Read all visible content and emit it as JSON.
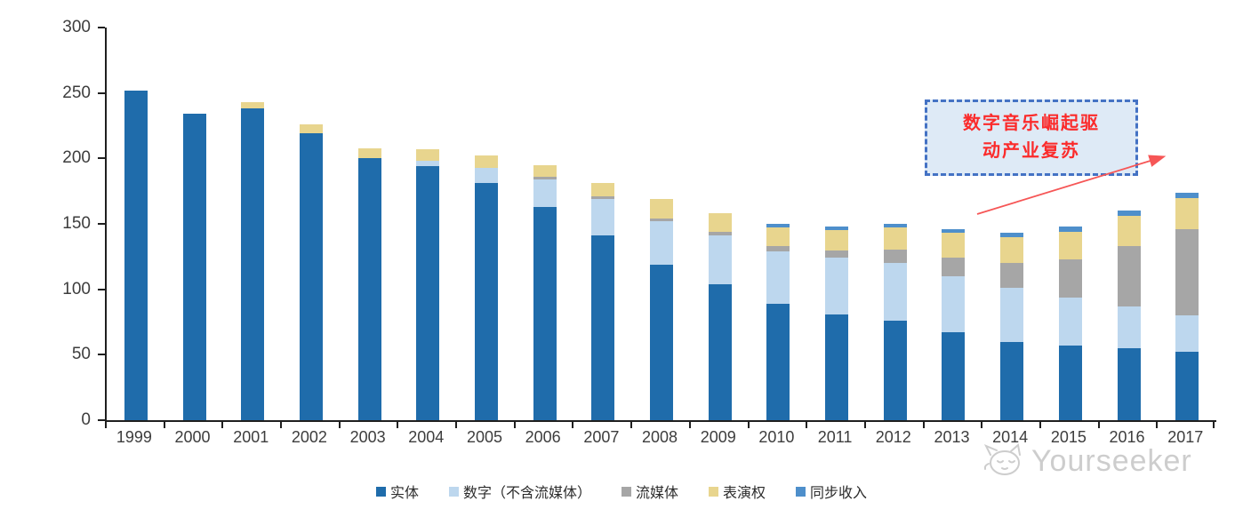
{
  "chart_data": {
    "type": "bar",
    "stacked": true,
    "categories": [
      "1999",
      "2000",
      "2001",
      "2002",
      "2003",
      "2004",
      "2005",
      "2006",
      "2007",
      "2008",
      "2009",
      "2010",
      "2011",
      "2012",
      "2013",
      "2014",
      "2015",
      "2016",
      "2017"
    ],
    "series": [
      {
        "name": "实体",
        "color": "#1f6cab",
        "values": [
          252,
          234,
          238,
          219,
          200,
          194,
          181,
          163,
          141,
          119,
          104,
          89,
          81,
          76,
          67,
          60,
          57,
          55,
          52
        ]
      },
      {
        "name": "数字（不含流媒体）",
        "color": "#bdd7ee",
        "values": [
          0,
          0,
          0,
          0,
          0,
          4,
          12,
          21,
          28,
          33,
          37,
          40,
          43,
          44,
          43,
          41,
          37,
          32,
          28
        ]
      },
      {
        "name": "流媒体",
        "color": "#a6a6a6",
        "values": [
          0,
          0,
          0,
          0,
          0,
          0,
          0,
          2,
          2,
          2,
          3,
          4,
          6,
          10,
          14,
          19,
          29,
          46,
          66
        ]
      },
      {
        "name": "表演权",
        "color": "#e8d58e",
        "values": [
          0,
          0,
          5,
          7,
          8,
          9,
          9,
          9,
          10,
          15,
          14,
          14,
          15,
          17,
          19,
          20,
          21,
          23,
          24
        ]
      },
      {
        "name": "同步收入",
        "color": "#4e8fcb",
        "values": [
          0,
          0,
          0,
          0,
          0,
          0,
          0,
          0,
          0,
          0,
          0,
          3,
          3,
          3,
          3,
          3,
          4,
          4,
          4
        ]
      }
    ],
    "title": "",
    "xlabel": "",
    "ylabel": "",
    "ylim": [
      0,
      300
    ],
    "yticks": [
      0,
      50,
      100,
      150,
      200,
      250,
      300
    ],
    "grid": false,
    "legend_position": "bottom"
  },
  "annotation": {
    "line1": "数字音乐崛起驱",
    "line2": "动产业复苏",
    "text_color": "#fb2b2b",
    "border_color": "#4472c4",
    "fill_color": "#deeaf6",
    "arrow_color": "#f65656"
  },
  "watermark": {
    "text": "Yourseeker",
    "color": "#cdcdcd"
  }
}
